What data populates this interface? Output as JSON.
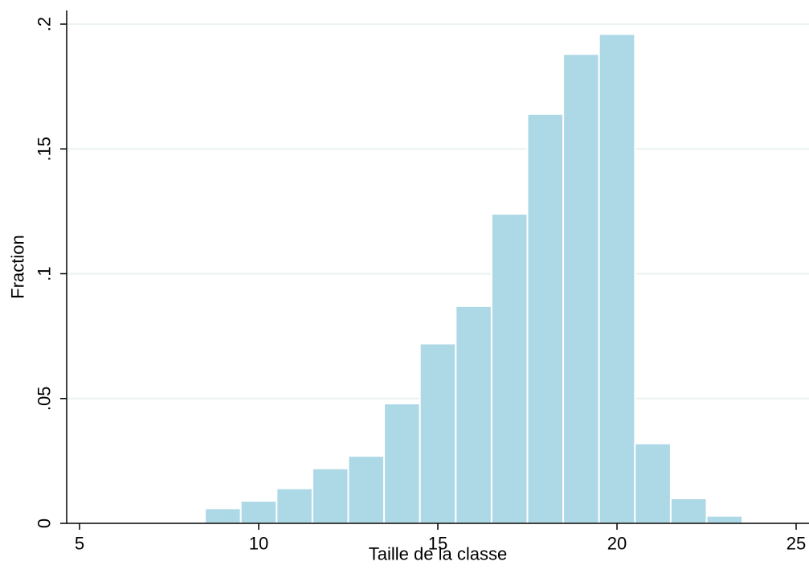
{
  "chart_data": {
    "type": "bar",
    "xlabel": "Taille de la classe",
    "ylabel": "Fraction",
    "xlim": [
      5,
      25
    ],
    "ylim": [
      0,
      0.2
    ],
    "xticks": [
      5,
      10,
      15,
      20,
      25
    ],
    "xtick_labels": [
      "5",
      "10",
      "15",
      "20",
      "25"
    ],
    "yticks": [
      0,
      0.05,
      0.1,
      0.15,
      0.2
    ],
    "ytick_labels": [
      "0",
      ".05",
      ".1",
      ".15",
      ".2"
    ],
    "bin_width": 1,
    "bins": [
      {
        "x": 9,
        "value": 0.006
      },
      {
        "x": 10,
        "value": 0.009
      },
      {
        "x": 11,
        "value": 0.014
      },
      {
        "x": 12,
        "value": 0.022
      },
      {
        "x": 13,
        "value": 0.027
      },
      {
        "x": 14,
        "value": 0.048
      },
      {
        "x": 15,
        "value": 0.072
      },
      {
        "x": 16,
        "value": 0.087
      },
      {
        "x": 17,
        "value": 0.124
      },
      {
        "x": 18,
        "value": 0.164
      },
      {
        "x": 19,
        "value": 0.188
      },
      {
        "x": 20,
        "value": 0.196
      },
      {
        "x": 21,
        "value": 0.032
      },
      {
        "x": 22,
        "value": 0.01
      },
      {
        "x": 23,
        "value": 0.003
      }
    ],
    "grid": true,
    "colors": {
      "bar_fill": "#add8e6",
      "bar_stroke": "#ffffff",
      "grid": "#eaf2f3",
      "axis": "#000000"
    }
  }
}
